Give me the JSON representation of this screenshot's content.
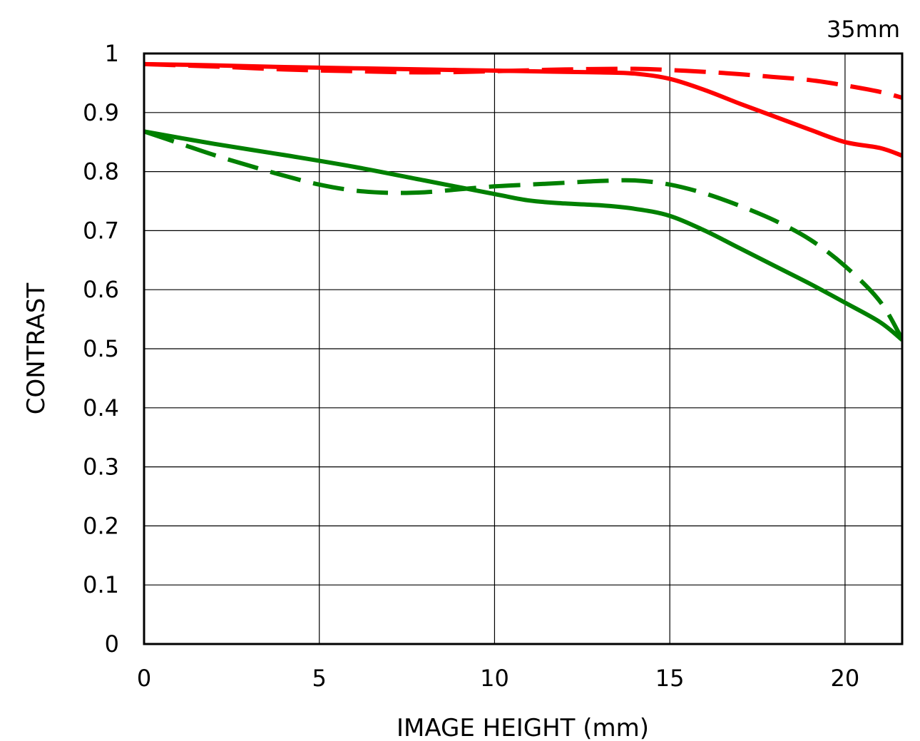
{
  "chart_data": {
    "type": "line",
    "title": "",
    "annotation": "35mm",
    "xlabel": "IMAGE HEIGHT (mm)",
    "ylabel": "CONTRAST",
    "xlim": [
      0,
      21.63
    ],
    "ylim": [
      0,
      1
    ],
    "x_ticks": [
      0,
      5,
      10,
      15,
      20
    ],
    "x_tick_labels": [
      "0",
      "5",
      "10",
      "15",
      "20"
    ],
    "y_ticks": [
      0,
      0.1,
      0.2,
      0.3,
      0.4,
      0.5,
      0.6,
      0.7,
      0.8,
      0.9,
      1
    ],
    "y_tick_labels": [
      "0",
      "0.1",
      "0.2",
      "0.3",
      "0.4",
      "0.5",
      "0.6",
      "0.7",
      "0.8",
      "0.9",
      "1"
    ],
    "grid": true,
    "legend": "none",
    "series": [
      {
        "color": "#ff0000",
        "dash": false,
        "x": [
          0,
          2,
          4,
          6,
          8,
          10,
          12,
          13,
          14,
          15,
          16,
          17,
          18,
          19,
          20,
          21,
          21.63
        ],
        "y": [
          0.982,
          0.98,
          0.977,
          0.975,
          0.973,
          0.971,
          0.969,
          0.968,
          0.966,
          0.957,
          0.938,
          0.915,
          0.893,
          0.871,
          0.85,
          0.84,
          0.827
        ]
      },
      {
        "color": "#ff0000",
        "dash": true,
        "x": [
          0,
          2,
          4,
          6,
          8,
          10,
          12,
          14,
          15,
          16,
          17,
          18,
          19,
          20,
          21,
          21.63
        ],
        "y": [
          0.982,
          0.978,
          0.973,
          0.97,
          0.968,
          0.97,
          0.973,
          0.974,
          0.972,
          0.969,
          0.965,
          0.96,
          0.955,
          0.946,
          0.935,
          0.925
        ]
      },
      {
        "color": "#008000",
        "dash": false,
        "x": [
          0,
          2,
          4,
          6,
          8,
          10,
          11,
          12,
          13,
          14,
          15,
          16,
          17,
          18,
          19,
          20,
          21,
          21.63
        ],
        "y": [
          0.868,
          0.847,
          0.828,
          0.808,
          0.785,
          0.762,
          0.751,
          0.746,
          0.743,
          0.737,
          0.725,
          0.7,
          0.67,
          0.64,
          0.61,
          0.578,
          0.545,
          0.515
        ]
      },
      {
        "color": "#008000",
        "dash": true,
        "x": [
          0,
          1,
          2,
          3,
          4,
          5,
          6,
          7,
          8,
          9,
          10,
          11,
          12,
          13,
          14,
          15,
          16,
          17,
          18,
          19,
          20,
          21,
          21.63
        ],
        "y": [
          0.868,
          0.848,
          0.828,
          0.81,
          0.793,
          0.778,
          0.768,
          0.764,
          0.765,
          0.77,
          0.775,
          0.778,
          0.781,
          0.784,
          0.785,
          0.778,
          0.763,
          0.742,
          0.717,
          0.685,
          0.64,
          0.58,
          0.516
        ]
      }
    ]
  }
}
